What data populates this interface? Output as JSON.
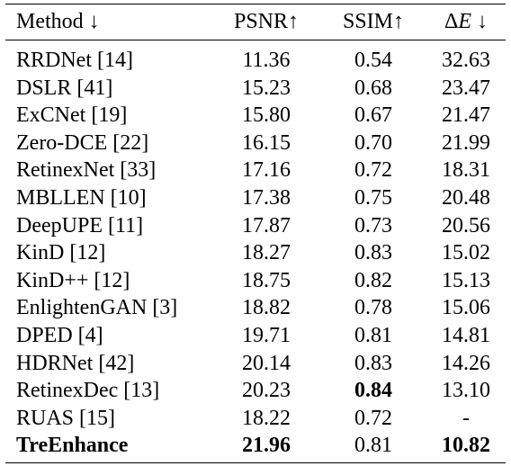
{
  "table": {
    "headers": {
      "method": "Method ↓",
      "psnr": "PSNR↑",
      "ssim": "SSIM↑",
      "delta_e_symbol": "Δ",
      "delta_e_letter": "E",
      "delta_e_arrow": "↓"
    },
    "rows": [
      {
        "method": "RRDNet [14]",
        "psnr": "11.36",
        "ssim": "0.54",
        "delta_e": "32.63",
        "bold": []
      },
      {
        "method": "DSLR [41]",
        "psnr": "15.23",
        "ssim": "0.68",
        "delta_e": "23.47",
        "bold": []
      },
      {
        "method": "ExCNet [19]",
        "psnr": "15.80",
        "ssim": "0.67",
        "delta_e": "21.47",
        "bold": []
      },
      {
        "method": "Zero-DCE [22]",
        "psnr": "16.15",
        "ssim": "0.70",
        "delta_e": "21.99",
        "bold": []
      },
      {
        "method": "RetinexNet [33]",
        "psnr": "17.16",
        "ssim": "0.72",
        "delta_e": "18.31",
        "bold": []
      },
      {
        "method": "MBLLEN [10]",
        "psnr": "17.38",
        "ssim": "0.75",
        "delta_e": "20.48",
        "bold": []
      },
      {
        "method": "DeepUPE [11]",
        "psnr": "17.87",
        "ssim": "0.73",
        "delta_e": "20.56",
        "bold": []
      },
      {
        "method": "KinD [12]",
        "psnr": "18.27",
        "ssim": "0.83",
        "delta_e": "15.02",
        "bold": []
      },
      {
        "method": "KinD++ [12]",
        "psnr": "18.75",
        "ssim": "0.82",
        "delta_e": "15.13",
        "bold": []
      },
      {
        "method": "EnlightenGAN [3]",
        "psnr": "18.82",
        "ssim": "0.78",
        "delta_e": "15.06",
        "bold": []
      },
      {
        "method": "DPED [4]",
        "psnr": "19.71",
        "ssim": "0.81",
        "delta_e": "14.81",
        "bold": []
      },
      {
        "method": "HDRNet [42]",
        "psnr": "20.14",
        "ssim": "0.83",
        "delta_e": "14.26",
        "bold": []
      },
      {
        "method": "RetinexDec [13]",
        "psnr": "20.23",
        "ssim": "0.84",
        "delta_e": "13.10",
        "bold": [
          "ssim"
        ]
      },
      {
        "method": "RUAS [15]",
        "psnr": "18.22",
        "ssim": "0.72",
        "delta_e": "-",
        "bold": []
      },
      {
        "method": "TreEnhance",
        "psnr": "21.96",
        "ssim": "0.81",
        "delta_e": "10.82",
        "bold": [
          "method",
          "psnr",
          "delta_e"
        ]
      }
    ]
  }
}
